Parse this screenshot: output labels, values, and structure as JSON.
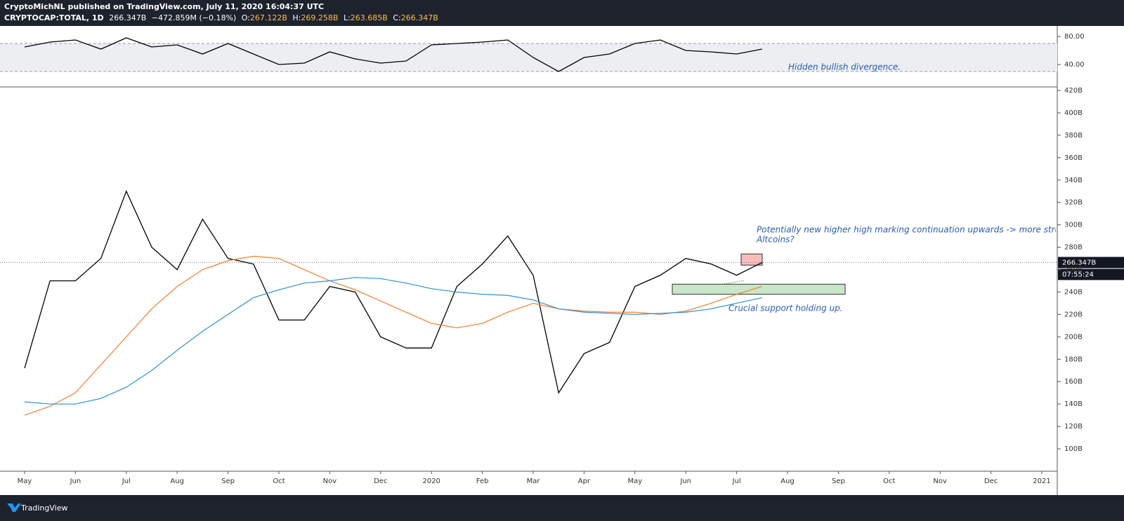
{
  "header": {
    "publisher": "CryptoMichNL published on TradingView.com, July 11, 2020 16:04:37 UTC",
    "symbol": "CRYPTOCAP:TOTAL, 1D",
    "price": "266.347B",
    "change": "−472.859M (−0.18%)",
    "open_label": "O:",
    "open": "267.122B",
    "high_label": "H:",
    "high": "269.258B",
    "low_label": "L:",
    "low": "263.685B",
    "close_label": "C:",
    "close": "266.347B"
  },
  "footer": {
    "brand": "TradingView"
  },
  "countdown": "07:55:24",
  "chart_data": [
    {
      "type": "line",
      "categories": [
        "May",
        null,
        "Jun",
        null,
        "Jul",
        null,
        "Aug",
        null,
        "Sep",
        null,
        "Oct",
        null,
        "Nov",
        null,
        "Dec",
        null,
        "2020",
        null,
        "Feb",
        null,
        "Mar",
        null,
        "Apr",
        null,
        "May",
        null,
        "Jun",
        null,
        "Jul",
        null,
        "Aug",
        null,
        "Sep",
        null,
        "Oct",
        null,
        "Nov",
        null,
        "Dec",
        null,
        "2021"
      ],
      "series": [
        {
          "color": "#000000",
          "values": [
            172,
            250,
            250,
            270,
            330,
            280,
            260,
            305,
            270,
            265,
            215,
            215,
            245,
            240,
            200,
            190,
            190,
            245,
            265,
            290,
            255,
            150,
            185,
            195,
            245,
            255,
            270,
            265,
            255,
            266.347,
            null,
            null,
            null,
            null,
            null,
            null,
            null,
            null,
            null,
            null,
            null
          ]
        },
        {
          "color": "#f57c2c",
          "values": [
            130,
            138,
            150,
            175,
            200,
            225,
            245,
            260,
            268,
            272,
            270,
            260,
            250,
            242,
            232,
            222,
            212,
            208,
            212,
            222,
            230,
            225,
            223,
            222,
            222,
            220,
            223,
            230,
            238,
            245,
            null,
            null,
            null,
            null,
            null,
            null,
            null,
            null,
            null,
            null,
            null
          ]
        },
        {
          "color": "#2f8fdc",
          "values": [
            142,
            140,
            140,
            145,
            155,
            170,
            188,
            205,
            220,
            235,
            242,
            248,
            250,
            253,
            252,
            248,
            243,
            240,
            238,
            237,
            233,
            225,
            222,
            221,
            220,
            221,
            222,
            225,
            230,
            235,
            null,
            null,
            null,
            null,
            null,
            null,
            null,
            null,
            null,
            null,
            null
          ]
        }
      ],
      "ylim": [
        80,
        422.5
      ],
      "yticks": [
        {
          "value": 100,
          "label": "100B"
        },
        {
          "value": 120,
          "label": "120B"
        },
        {
          "value": 140,
          "label": "140B"
        },
        {
          "value": 160,
          "label": "160B"
        },
        {
          "value": 180,
          "label": "180B"
        },
        {
          "value": 200,
          "label": "200B"
        },
        {
          "value": 220,
          "label": "220B"
        },
        {
          "value": 240,
          "label": "240B"
        },
        {
          "value": 260,
          "label": "260B"
        },
        {
          "value": 280,
          "label": "280B"
        },
        {
          "value": 300,
          "label": "300B"
        },
        {
          "value": 320,
          "label": "320B"
        },
        {
          "value": 340,
          "label": "340B"
        },
        {
          "value": 360,
          "label": "360B"
        },
        {
          "value": 380,
          "label": "380B"
        },
        {
          "value": 400,
          "label": "400B"
        },
        {
          "value": 420,
          "label": "420B"
        }
      ],
      "last_price": {
        "value": 266.347,
        "label": "266.347B"
      },
      "zones": [
        {
          "range": [
            238,
            247
          ],
          "color": "#c8e6c9"
        },
        {
          "range": [
            264,
            274
          ],
          "color": "#f8bcbc"
        }
      ],
      "annotations": [
        "Potentially new higher high marking continuation upwards -> more strength for",
        "Altcoins?",
        "Crucial support holding up."
      ]
    },
    {
      "type": "line",
      "series": [
        {
          "color": "#000000",
          "values": [
            65,
            72,
            75,
            62,
            78,
            65,
            68,
            55,
            70,
            55,
            40,
            42,
            58,
            48,
            42,
            45,
            68,
            70,
            72,
            75,
            50,
            30,
            50,
            55,
            70,
            75,
            60,
            58,
            55,
            62,
            null,
            null,
            null,
            null,
            null,
            null,
            null,
            null,
            null,
            null,
            null
          ]
        }
      ],
      "ylim": [
        8,
        94
      ],
      "band": [
        30,
        70
      ],
      "yticks": [
        {
          "value": 40,
          "label": "40.00"
        },
        {
          "value": 80,
          "label": "80.00"
        }
      ],
      "annotations": [
        "Hidden bullish divergence."
      ]
    }
  ]
}
